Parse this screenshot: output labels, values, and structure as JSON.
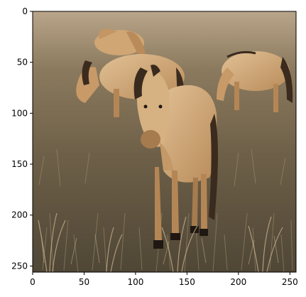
{
  "figure": {
    "image_extent": {
      "x": [
        0,
        256
      ],
      "y": [
        0,
        256
      ]
    },
    "x_ticks": [
      {
        "value": 0,
        "label": "0"
      },
      {
        "value": 50,
        "label": "50"
      },
      {
        "value": 100,
        "label": "100"
      },
      {
        "value": 150,
        "label": "150"
      },
      {
        "value": 200,
        "label": "200"
      },
      {
        "value": 250,
        "label": "250"
      }
    ],
    "y_ticks": [
      {
        "value": 0,
        "label": "0"
      },
      {
        "value": 50,
        "label": "50"
      },
      {
        "value": 100,
        "label": "100"
      },
      {
        "value": 150,
        "label": "150"
      },
      {
        "value": 200,
        "label": "200"
      },
      {
        "value": 250,
        "label": "250"
      }
    ],
    "colors": {
      "sky": "#b9a58a",
      "grass_far": "#8b7a5e",
      "grass_mid": "#6e6048",
      "grass_near": "#4f4636",
      "horse_coat": "#d8b486",
      "horse_shade": "#b58655",
      "mane": "#3b2b1e",
      "hoof": "#1f1812"
    },
    "subject": "horses"
  }
}
